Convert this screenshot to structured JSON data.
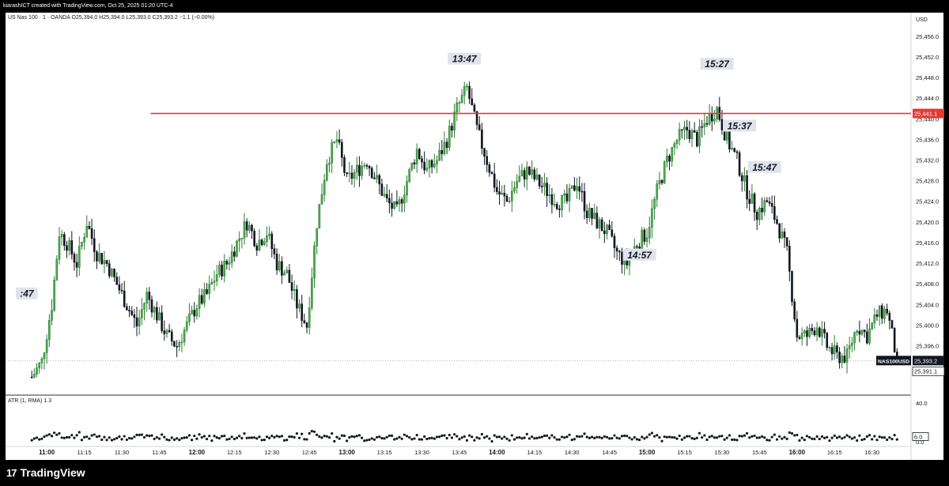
{
  "header": {
    "credit": "kiarashICT created with TradingView.com, Oct 25, 2025 01:20 UTC-4",
    "symbol_line": "US Nas 100 · 1 · OANDA  O25,394.0  H25,394.0  L25,393.0  C25,393.2  −1.1 (−0.00%)",
    "currency": "USD"
  },
  "indicator": {
    "label": "ATR (1, RMA)  1.3",
    "axis_top": "40.0",
    "axis_zero": "0.0",
    "current_value": "6.0"
  },
  "footer": {
    "logo_mark": "17",
    "logo_text": "TradingView"
  },
  "colors": {
    "bull": "#2e7d32",
    "bull_fill": "#4caf50",
    "bear": "#131722",
    "resistance_line": "#e53935",
    "last_price_bg": "#131722",
    "grid": "#f0f3fa"
  },
  "chart_data": {
    "type": "candlestick",
    "symbol": "NAS100USD",
    "timeframe": "1",
    "ylim": [
      25386.5,
      25458.5
    ],
    "y_ticks": [
      "25,456.0",
      "25,452.0",
      "25,448.0",
      "25,444.0",
      "25,440.0",
      "25,436.0",
      "25,432.0",
      "25,428.0",
      "25,424.0",
      "25,420.0",
      "25,416.0",
      "25,412.0",
      "25,408.0",
      "25,404.0",
      "25,400.0",
      "25,396.0"
    ],
    "y_tick_values": [
      25456,
      25452,
      25448,
      25444,
      25440,
      25436,
      25432,
      25428,
      25424,
      25420,
      25416,
      25412,
      25408,
      25404,
      25400,
      25396
    ],
    "x_ticks": [
      "11:00",
      "11:15",
      "11:30",
      "11:45",
      "12:00",
      "12:15",
      "12:30",
      "12:45",
      "13:00",
      "13:15",
      "13:30",
      "13:45",
      "14:00",
      "14:15",
      "14:30",
      "14:45",
      "15:00",
      "15:15",
      "15:30",
      "15:45",
      "16:00",
      "16:15",
      "16:30"
    ],
    "x_tick_minutes": [
      660,
      675,
      690,
      705,
      720,
      735,
      750,
      765,
      780,
      795,
      810,
      825,
      840,
      855,
      870,
      885,
      900,
      915,
      930,
      945,
      960,
      975,
      990
    ],
    "bold_x_ticks": [
      "11:00",
      "12:00",
      "13:00",
      "14:00",
      "15:00",
      "16:00"
    ],
    "price_path": [
      [
        654,
        25390
      ],
      [
        658,
        25393
      ],
      [
        662,
        25404
      ],
      [
        665,
        25418
      ],
      [
        668,
        25416
      ],
      [
        672,
        25412
      ],
      [
        676,
        25420
      ],
      [
        680,
        25414
      ],
      [
        684,
        25412
      ],
      [
        688,
        25408
      ],
      [
        692,
        25404
      ],
      [
        696,
        25400
      ],
      [
        700,
        25406
      ],
      [
        704,
        25402
      ],
      [
        708,
        25398
      ],
      [
        712,
        25396
      ],
      [
        716,
        25400
      ],
      [
        720,
        25404
      ],
      [
        724,
        25406
      ],
      [
        728,
        25410
      ],
      [
        732,
        25412
      ],
      [
        736,
        25416
      ],
      [
        740,
        25420
      ],
      [
        744,
        25416
      ],
      [
        748,
        25418
      ],
      [
        752,
        25412
      ],
      [
        756,
        25410
      ],
      [
        760,
        25404
      ],
      [
        764,
        25400
      ],
      [
        768,
        25420
      ],
      [
        772,
        25432
      ],
      [
        776,
        25436
      ],
      [
        780,
        25428
      ],
      [
        784,
        25430
      ],
      [
        788,
        25432
      ],
      [
        792,
        25428
      ],
      [
        796,
        25424
      ],
      [
        800,
        25422
      ],
      [
        804,
        25428
      ],
      [
        808,
        25434
      ],
      [
        812,
        25430
      ],
      [
        816,
        25432
      ],
      [
        820,
        25436
      ],
      [
        824,
        25442
      ],
      [
        828,
        25446
      ],
      [
        832,
        25438
      ],
      [
        836,
        25432
      ],
      [
        840,
        25426
      ],
      [
        844,
        25424
      ],
      [
        848,
        25428
      ],
      [
        852,
        25430
      ],
      [
        856,
        25428
      ],
      [
        860,
        25426
      ],
      [
        864,
        25424
      ],
      [
        868,
        25424
      ],
      [
        872,
        25428
      ],
      [
        876,
        25422
      ],
      [
        880,
        25420
      ],
      [
        884,
        25418
      ],
      [
        888,
        25414
      ],
      [
        892,
        25412
      ],
      [
        896,
        25416
      ],
      [
        900,
        25418
      ],
      [
        904,
        25426
      ],
      [
        908,
        25432
      ],
      [
        912,
        25436
      ],
      [
        916,
        25438
      ],
      [
        920,
        25436
      ],
      [
        924,
        25440
      ],
      [
        928,
        25442
      ],
      [
        932,
        25436
      ],
      [
        936,
        25432
      ],
      [
        940,
        25426
      ],
      [
        944,
        25422
      ],
      [
        948,
        25424
      ],
      [
        952,
        25420
      ],
      [
        956,
        25414
      ],
      [
        960,
        25398
      ],
      [
        964,
        25398
      ],
      [
        968,
        25400
      ],
      [
        972,
        25396
      ],
      [
        976,
        25394
      ],
      [
        980,
        25394
      ],
      [
        984,
        25400
      ],
      [
        988,
        25398
      ],
      [
        992,
        25402
      ],
      [
        996,
        25403
      ],
      [
        1000,
        25393.2
      ]
    ],
    "resistance_level": 25441.1,
    "resistance_label": "25,441.1",
    "last_price": 25393.2,
    "last_price_label": "25,393.2",
    "bid_label": "25,391.1",
    "series_label": "NAS100USD",
    "time_annotations": [
      {
        "text": "13:47",
        "minute": 827,
        "price": 25451.5
      },
      {
        "text": "15:27",
        "minute": 928,
        "price": 25450.5
      },
      {
        "text": "15:37",
        "minute": 937,
        "price": 25438.5
      },
      {
        "text": "15:47",
        "minute": 947,
        "price": 25430.5
      },
      {
        "text": "14:57",
        "minute": 897,
        "price": 25413.5
      },
      {
        "text": ":47",
        "minute": 652,
        "price": 25406.0
      }
    ],
    "atr_ylim": [
      0,
      40
    ]
  }
}
